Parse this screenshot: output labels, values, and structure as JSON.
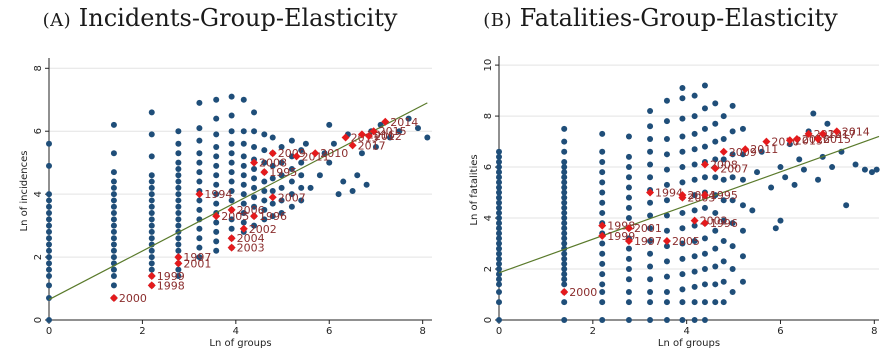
{
  "chart_data": [
    {
      "type": "scatter",
      "panel_title": "Incidents-Group-Elasticity",
      "panel_letter": "A",
      "xlabel": "Ln of groups",
      "ylabel": "Ln of incidences",
      "xlim": [
        0,
        8.2
      ],
      "ylim": [
        0,
        8.2
      ],
      "x_ticks": [
        0,
        2,
        4,
        6,
        8
      ],
      "y_ticks": [
        0,
        2,
        4,
        6,
        8
      ],
      "grid": true,
      "colors": {
        "points": "#1f4e79",
        "highlight": "#e41a1c",
        "label": "#8b2e2e",
        "fit": "#5a7a2b",
        "grid": "#e3e3e3"
      },
      "fit_line": {
        "x": [
          0,
          8.1
        ],
        "y": [
          0.65,
          6.9
        ]
      },
      "points_columns": [
        {
          "x": 0,
          "y": [
            0,
            0.7,
            1.1,
            1.4,
            1.6,
            1.8,
            2.0,
            2.2,
            2.4,
            2.6,
            2.8,
            3.0,
            3.2,
            3.4,
            3.6,
            3.8,
            4.0,
            4.9,
            5.6
          ]
        },
        {
          "x": 1.39,
          "y": [
            0.7,
            1.1,
            1.4,
            1.6,
            1.8,
            2.0,
            2.2,
            2.4,
            2.6,
            2.8,
            3.0,
            3.2,
            3.4,
            3.6,
            3.8,
            4.0,
            4.2,
            4.4,
            4.7,
            5.3,
            6.2
          ]
        },
        {
          "x": 2.2,
          "y": [
            1.1,
            1.4,
            1.6,
            1.8,
            2.0,
            2.2,
            2.4,
            2.6,
            2.8,
            3.0,
            3.2,
            3.4,
            3.6,
            3.8,
            4.0,
            4.2,
            4.4,
            4.6,
            5.2,
            5.9,
            6.6
          ]
        },
        {
          "x": 2.77,
          "y": [
            1.4,
            1.6,
            1.8,
            2.0,
            2.2,
            2.4,
            2.6,
            2.8,
            3.0,
            3.2,
            3.4,
            3.6,
            3.8,
            4.0,
            4.2,
            4.4,
            4.6,
            4.8,
            5.0,
            5.3,
            5.6,
            6.0
          ]
        },
        {
          "x": 3.22,
          "y": [
            2.0,
            2.3,
            2.6,
            2.9,
            3.2,
            3.5,
            3.8,
            4.1,
            4.4,
            4.7,
            5.0,
            5.3,
            5.7,
            6.1,
            6.9
          ]
        },
        {
          "x": 3.58,
          "y": [
            2.2,
            2.5,
            2.8,
            3.1,
            3.4,
            3.7,
            4.0,
            4.3,
            4.6,
            4.9,
            5.2,
            5.5,
            5.9,
            6.4,
            7.0
          ]
        },
        {
          "x": 3.91,
          "y": [
            2.3,
            2.6,
            2.9,
            3.2,
            3.5,
            3.8,
            4.1,
            4.4,
            4.7,
            5.0,
            5.3,
            5.6,
            6.0,
            6.5,
            7.1
          ]
        },
        {
          "x": 4.17,
          "y": [
            2.8,
            3.1,
            3.4,
            3.7,
            4.0,
            4.3,
            4.6,
            4.9,
            5.2,
            5.6,
            6.0,
            7.0
          ]
        },
        {
          "x": 4.39,
          "y": [
            3.0,
            3.3,
            3.6,
            3.9,
            4.2,
            4.5,
            4.8,
            5.1,
            5.5,
            6.0,
            6.6
          ]
        },
        {
          "x": 4.61,
          "y": [
            3.2,
            3.5,
            3.8,
            4.1,
            4.4,
            4.7,
            5.0,
            5.4,
            5.9
          ]
        },
        {
          "x": 4.79,
          "y": [
            3.3,
            3.7,
            4.1,
            4.5,
            4.9,
            5.3,
            5.8
          ]
        },
        {
          "x": 4.98,
          "y": [
            3.4,
            3.8,
            4.2,
            4.6,
            5.0,
            5.5
          ]
        },
        {
          "x": 5.2,
          "y": [
            3.6,
            4.0,
            4.4,
            4.8,
            5.2,
            5.7
          ]
        },
        {
          "x": 5.4,
          "y": [
            3.8,
            4.2,
            4.6,
            5.0,
            5.4
          ]
        }
      ],
      "points_extra": [
        {
          "x": 5.6,
          "y": 4.2
        },
        {
          "x": 5.8,
          "y": 4.6
        },
        {
          "x": 6.0,
          "y": 5.0
        },
        {
          "x": 6.1,
          "y": 5.6
        },
        {
          "x": 6.2,
          "y": 4.0
        },
        {
          "x": 6.3,
          "y": 4.4
        },
        {
          "x": 6.4,
          "y": 5.9
        },
        {
          "x": 6.5,
          "y": 4.1
        },
        {
          "x": 6.6,
          "y": 4.6
        },
        {
          "x": 6.7,
          "y": 5.3
        },
        {
          "x": 6.8,
          "y": 4.3
        },
        {
          "x": 6.9,
          "y": 6.0
        },
        {
          "x": 7.0,
          "y": 5.5
        },
        {
          "x": 7.1,
          "y": 6.2
        },
        {
          "x": 7.3,
          "y": 5.8
        },
        {
          "x": 7.5,
          "y": 6.0
        },
        {
          "x": 7.7,
          "y": 6.4
        },
        {
          "x": 7.9,
          "y": 6.1
        },
        {
          "x": 8.1,
          "y": 5.8
        },
        {
          "x": 5.9,
          "y": 5.3
        },
        {
          "x": 5.5,
          "y": 5.6
        },
        {
          "x": 6.0,
          "y": 6.2
        }
      ],
      "highlight": [
        {
          "x": 1.39,
          "y": 0.7,
          "label": "2000"
        },
        {
          "x": 2.2,
          "y": 1.1,
          "label": "1998"
        },
        {
          "x": 2.2,
          "y": 1.4,
          "label": "1999"
        },
        {
          "x": 2.77,
          "y": 1.8,
          "label": "2001"
        },
        {
          "x": 2.77,
          "y": 2.0,
          "label": "1997"
        },
        {
          "x": 3.22,
          "y": 4.0,
          "label": "1994"
        },
        {
          "x": 3.58,
          "y": 3.3,
          "label": "2005"
        },
        {
          "x": 3.91,
          "y": 3.5,
          "label": "2006"
        },
        {
          "x": 3.91,
          "y": 2.6,
          "label": "2004"
        },
        {
          "x": 3.91,
          "y": 2.3,
          "label": "2003"
        },
        {
          "x": 4.17,
          "y": 2.9,
          "label": "2002"
        },
        {
          "x": 4.39,
          "y": 3.3,
          "label": "1996"
        },
        {
          "x": 4.39,
          "y": 5.0,
          "label": "2008"
        },
        {
          "x": 4.61,
          "y": 4.7,
          "label": "1995"
        },
        {
          "x": 4.79,
          "y": 3.9,
          "label": "2007"
        },
        {
          "x": 4.79,
          "y": 5.3,
          "label": "2009"
        },
        {
          "x": 5.3,
          "y": 5.2,
          "label": "2011"
        },
        {
          "x": 5.7,
          "y": 5.3,
          "label": "2010"
        },
        {
          "x": 6.35,
          "y": 5.8,
          "label": "2013"
        },
        {
          "x": 6.5,
          "y": 5.55,
          "label": "2017"
        },
        {
          "x": 6.7,
          "y": 5.9,
          "label": "2016"
        },
        {
          "x": 6.85,
          "y": 5.85,
          "label": "2012"
        },
        {
          "x": 6.95,
          "y": 6.0,
          "label": "2015"
        },
        {
          "x": 7.2,
          "y": 6.3,
          "label": "2014"
        }
      ]
    },
    {
      "type": "scatter",
      "panel_title": "Fatalities-Group-Elasticity",
      "panel_letter": "B",
      "xlabel": "Ln of groups",
      "ylabel": "Ln of fatalities",
      "xlim": [
        0,
        8.1
      ],
      "ylim": [
        0,
        10.2
      ],
      "x_ticks": [
        0,
        2,
        4,
        6,
        8
      ],
      "y_ticks": [
        0,
        2,
        4,
        6,
        8,
        10
      ],
      "grid": true,
      "colors": {
        "points": "#1f4e79",
        "highlight": "#e41a1c",
        "label": "#8b2e2e",
        "fit": "#5a7a2b",
        "grid": "#e3e3e3"
      },
      "fit_line": {
        "x": [
          0,
          8.1
        ],
        "y": [
          1.85,
          7.2
        ]
      },
      "points_columns": [
        {
          "x": 0,
          "y": [
            0,
            0.7,
            1.1,
            1.4,
            1.6,
            1.8,
            2.0,
            2.2,
            2.4,
            2.6,
            2.8,
            3.0,
            3.2,
            3.4,
            3.6,
            3.8,
            4.0,
            4.2,
            4.4,
            4.6,
            4.8,
            5.0,
            5.2,
            5.4,
            5.6,
            5.8,
            6.0,
            6.2,
            6.4,
            6.6
          ]
        },
        {
          "x": 1.39,
          "y": [
            0,
            0.7,
            1.1,
            1.4,
            1.6,
            1.8,
            2.0,
            2.2,
            2.4,
            2.6,
            2.8,
            3.0,
            3.2,
            3.4,
            3.6,
            3.8,
            4.0,
            4.2,
            4.4,
            4.6,
            4.8,
            5.0,
            5.2,
            5.4,
            5.6,
            5.8,
            6.0,
            6.2,
            6.6,
            7.0,
            7.5
          ]
        },
        {
          "x": 2.2,
          "y": [
            0,
            0.7,
            1.1,
            1.4,
            1.8,
            2.2,
            2.6,
            3.0,
            3.4,
            3.8,
            4.2,
            4.6,
            5.0,
            5.4,
            5.8,
            6.2,
            6.6,
            7.3
          ]
        },
        {
          "x": 2.77,
          "y": [
            0,
            0.7,
            1.1,
            1.6,
            2.0,
            2.4,
            2.8,
            3.2,
            3.6,
            4.0,
            4.4,
            4.8,
            5.2,
            5.6,
            6.0,
            6.4,
            7.2
          ]
        },
        {
          "x": 3.22,
          "y": [
            0,
            0.7,
            1.1,
            1.6,
            2.1,
            2.6,
            3.1,
            3.6,
            4.1,
            4.6,
            5.1,
            5.6,
            6.1,
            6.6,
            7.1,
            7.6,
            8.2
          ]
        },
        {
          "x": 3.58,
          "y": [
            0,
            0.7,
            1.1,
            1.7,
            2.3,
            2.9,
            3.5,
            4.1,
            4.7,
            5.3,
            5.9,
            6.5,
            7.1,
            7.8,
            8.6
          ]
        },
        {
          "x": 3.91,
          "y": [
            0,
            0.7,
            1.2,
            1.8,
            2.4,
            3.0,
            3.6,
            4.2,
            4.8,
            5.4,
            6.0,
            6.6,
            7.2,
            7.9,
            8.7,
            9.1
          ]
        },
        {
          "x": 4.17,
          "y": [
            0,
            0.7,
            1.3,
            1.9,
            2.5,
            3.1,
            3.7,
            4.3,
            4.9,
            5.5,
            6.1,
            6.7,
            7.3,
            8.0,
            8.8
          ]
        },
        {
          "x": 4.39,
          "y": [
            0,
            0.7,
            1.4,
            2.0,
            2.6,
            3.2,
            3.8,
            4.4,
            5.0,
            5.6,
            6.2,
            6.8,
            7.5,
            8.3,
            9.2
          ]
        },
        {
          "x": 4.61,
          "y": [
            0.7,
            1.4,
            2.1,
            2.8,
            3.5,
            4.2,
            4.9,
            5.6,
            6.3,
            7.0,
            7.7,
            8.5
          ]
        },
        {
          "x": 4.79,
          "y": [
            0.7,
            1.5,
            2.3,
            3.1,
            3.9,
            4.7,
            5.5,
            6.3,
            7.1,
            8.0
          ]
        },
        {
          "x": 4.98,
          "y": [
            1.1,
            2.0,
            2.9,
            3.8,
            4.7,
            5.6,
            6.5,
            7.4,
            8.4
          ]
        },
        {
          "x": 5.2,
          "y": [
            1.5,
            2.5,
            3.5,
            4.5,
            5.5,
            6.5,
            7.5
          ]
        }
      ],
      "points_extra": [
        {
          "x": 5.4,
          "y": 4.3
        },
        {
          "x": 5.5,
          "y": 5.8
        },
        {
          "x": 5.6,
          "y": 6.6
        },
        {
          "x": 5.8,
          "y": 5.2
        },
        {
          "x": 5.9,
          "y": 3.6
        },
        {
          "x": 6.0,
          "y": 6.0
        },
        {
          "x": 6.1,
          "y": 5.6
        },
        {
          "x": 6.2,
          "y": 6.9
        },
        {
          "x": 6.3,
          "y": 5.3
        },
        {
          "x": 6.4,
          "y": 6.3
        },
        {
          "x": 6.5,
          "y": 5.9
        },
        {
          "x": 6.6,
          "y": 7.4
        },
        {
          "x": 6.7,
          "y": 8.1
        },
        {
          "x": 6.8,
          "y": 5.5
        },
        {
          "x": 6.9,
          "y": 6.4
        },
        {
          "x": 7.0,
          "y": 7.7
        },
        {
          "x": 7.1,
          "y": 6.0
        },
        {
          "x": 7.3,
          "y": 6.6
        },
        {
          "x": 7.4,
          "y": 4.5
        },
        {
          "x": 7.6,
          "y": 6.1
        },
        {
          "x": 7.8,
          "y": 5.9
        },
        {
          "x": 7.95,
          "y": 5.8
        },
        {
          "x": 8.05,
          "y": 5.9
        },
        {
          "x": 6.0,
          "y": 3.9
        }
      ],
      "highlight": [
        {
          "x": 1.39,
          "y": 1.1,
          "label": "2000"
        },
        {
          "x": 2.2,
          "y": 3.7,
          "label": "1998"
        },
        {
          "x": 2.2,
          "y": 3.3,
          "label": "1999"
        },
        {
          "x": 2.77,
          "y": 3.6,
          "label": "2001"
        },
        {
          "x": 2.77,
          "y": 3.1,
          "label": "1997"
        },
        {
          "x": 3.22,
          "y": 5.0,
          "label": "1994"
        },
        {
          "x": 3.58,
          "y": 3.1,
          "label": "2005"
        },
        {
          "x": 3.91,
          "y": 4.8,
          "label": "2003"
        },
        {
          "x": 3.91,
          "y": 4.9,
          "label": "2004"
        },
        {
          "x": 4.17,
          "y": 3.9,
          "label": "2002"
        },
        {
          "x": 4.39,
          "y": 3.8,
          "label": "1996"
        },
        {
          "x": 4.39,
          "y": 4.9,
          "label": "1995"
        },
        {
          "x": 4.39,
          "y": 6.1,
          "label": "2008"
        },
        {
          "x": 4.61,
          "y": 5.95,
          "label": "2007"
        },
        {
          "x": 4.79,
          "y": 6.6,
          "label": "2009"
        },
        {
          "x": 5.25,
          "y": 6.7,
          "label": "2011"
        },
        {
          "x": 5.7,
          "y": 7.0,
          "label": "2010"
        },
        {
          "x": 6.2,
          "y": 7.05,
          "label": "2013"
        },
        {
          "x": 6.35,
          "y": 7.1,
          "label": "2016"
        },
        {
          "x": 6.6,
          "y": 7.3,
          "label": "2012"
        },
        {
          "x": 6.8,
          "y": 7.1,
          "label": "2015"
        },
        {
          "x": 6.9,
          "y": 7.3,
          "label": "2017"
        },
        {
          "x": 7.2,
          "y": 7.4,
          "label": "2014"
        }
      ]
    }
  ]
}
